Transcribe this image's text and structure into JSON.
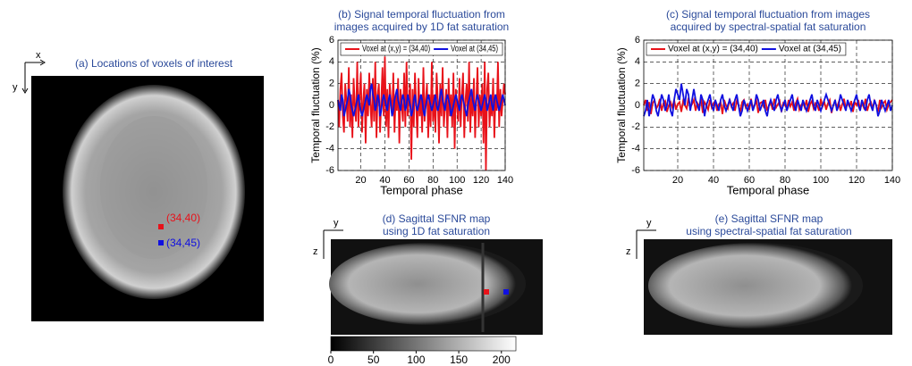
{
  "chart_data": [
    {
      "type": "line",
      "title": [
        "(b) Signal temporal fluctuation from",
        "images acquired by 1D fat saturation"
      ],
      "xlabel": "Temporal phase",
      "ylabel": "Temporal fluctuation (%)",
      "xlim": [
        1,
        140
      ],
      "xticks": [
        20,
        40,
        60,
        80,
        100,
        120,
        140
      ],
      "ylim": [
        -6,
        6
      ],
      "yticks": [
        -6,
        -4,
        -2,
        0,
        2,
        4,
        6
      ],
      "grid": true,
      "legend": "top",
      "x": [
        1,
        2,
        3,
        4,
        5,
        6,
        7,
        8,
        9,
        10,
        11,
        12,
        13,
        14,
        15,
        16,
        17,
        18,
        19,
        20,
        21,
        22,
        23,
        24,
        25,
        26,
        27,
        28,
        29,
        30,
        31,
        32,
        33,
        34,
        35,
        36,
        37,
        38,
        39,
        40,
        41,
        42,
        43,
        44,
        45,
        46,
        47,
        48,
        49,
        50,
        51,
        52,
        53,
        54,
        55,
        56,
        57,
        58,
        59,
        60,
        61,
        62,
        63,
        64,
        65,
        66,
        67,
        68,
        69,
        70,
        71,
        72,
        73,
        74,
        75,
        76,
        77,
        78,
        79,
        80,
        81,
        82,
        83,
        84,
        85,
        86,
        87,
        88,
        89,
        90,
        91,
        92,
        93,
        94,
        95,
        96,
        97,
        98,
        99,
        100,
        101,
        102,
        103,
        104,
        105,
        106,
        107,
        108,
        109,
        110,
        111,
        112,
        113,
        114,
        115,
        116,
        117,
        118,
        119,
        120,
        121,
        122,
        123,
        124,
        125,
        126,
        127,
        128,
        129,
        130,
        131,
        132,
        133,
        134,
        135,
        136,
        137,
        138,
        139,
        140
      ],
      "series": [
        {
          "name": "Voxel at (x,y) = (34,40)",
          "color": "#e8121a",
          "values": [
            0.5,
            -2,
            1.5,
            3,
            -1,
            -2.5,
            2,
            0.5,
            -1.5,
            3.5,
            -2,
            1,
            -3,
            2.5,
            0,
            -1.5,
            4,
            -2,
            1,
            3,
            -2.5,
            0.5,
            2,
            -3.5,
            1.5,
            -1,
            3,
            0,
            -2,
            2.5,
            -1.5,
            4,
            -3,
            1,
            2,
            -2.5,
            0.5,
            3.5,
            -1,
            4.5,
            -2,
            1.5,
            -3,
            2,
            0.5,
            -1,
            3,
            -2.5,
            1,
            -0.5,
            2.5,
            -3.5,
            1.5,
            0,
            -1.5,
            3,
            -2,
            4,
            -1,
            0.5,
            2,
            -5,
            1.5,
            -2,
            3,
            0,
            -3,
            2.5,
            -1,
            1,
            -2.5,
            3.5,
            -1.5,
            0.5,
            2,
            -3,
            1,
            -2,
            4,
            -1.5,
            1,
            -2.5,
            3,
            0.5,
            -3.5,
            2,
            -1,
            3.5,
            -2,
            0,
            1.5,
            -3,
            2.5,
            -1,
            1,
            -2,
            3,
            -4,
            1.5,
            0,
            -1.5,
            2.5,
            -2,
            1,
            3,
            -3,
            0.5,
            2,
            -1.5,
            4,
            -2.5,
            1,
            -1,
            2.5,
            -3,
            0.5,
            3.5,
            -2,
            1,
            -1,
            2,
            -3.5,
            4,
            -6,
            1.5,
            3,
            -2,
            0.5,
            -1,
            2.5,
            -3,
            1,
            -0.5,
            4,
            -2,
            1.5,
            -1,
            0.5,
            2,
            1
          ]
        },
        {
          "name": "Voxel at (34,45)",
          "color": "#1010e0",
          "values": [
            0.5,
            0,
            -0.5,
            1,
            0.5,
            -1,
            -0.5,
            0,
            0.5,
            1.5,
            1,
            0,
            -0.5,
            -1,
            -0.5,
            0,
            0.5,
            1,
            0,
            -0.5,
            -1,
            -0.5,
            0,
            0.5,
            1,
            0.5,
            0,
            1.5,
            2,
            1,
            0.5,
            -0.5,
            0,
            1,
            0.5,
            -1,
            -0.5,
            0.5,
            1,
            0.5,
            0,
            -0.5,
            0.5,
            1,
            0,
            -1,
            -0.5,
            0.5,
            1,
            1.5,
            0.5,
            0,
            -0.5,
            0.5,
            1,
            0.5,
            -0.5,
            0,
            1,
            0.5,
            0,
            -1,
            -0.5,
            0.5,
            1,
            0,
            -0.5,
            0,
            0.5,
            1,
            0.5,
            -0.5,
            -1,
            0,
            0.5,
            1,
            0.5,
            0,
            -0.5,
            0,
            0.5,
            1,
            0,
            -0.5,
            0,
            1,
            1.5,
            0.5,
            0,
            -0.5,
            0.5,
            1,
            0.5,
            0,
            -1,
            -0.5,
            0,
            0.5,
            1,
            0.5,
            0,
            -0.5,
            0.5,
            1,
            0.5,
            0,
            -0.5,
            -1,
            0,
            0.5,
            1,
            1.5,
            0.5,
            0,
            -0.5,
            0.5,
            1,
            0.5,
            0,
            -0.5,
            0,
            0.5,
            1,
            0.5,
            -0.5,
            0,
            0.5,
            1,
            0,
            -0.5,
            0.5,
            1,
            0.5,
            0,
            -0.5,
            0,
            0.5,
            1,
            0.5,
            0
          ]
        }
      ]
    },
    {
      "type": "line",
      "title": [
        "(c) Signal temporal fluctuation from images",
        "acquired by spectral-spatial fat saturation"
      ],
      "xlabel": "Temporal phase",
      "ylabel": "Temporal fluctuation (%)",
      "xlim": [
        1,
        140
      ],
      "xticks": [
        20,
        40,
        60,
        80,
        100,
        120,
        140
      ],
      "ylim": [
        -6,
        6
      ],
      "yticks": [
        -6,
        -4,
        -2,
        0,
        2,
        4,
        6
      ],
      "grid": true,
      "legend": "top",
      "x": [
        1,
        2,
        3,
        4,
        5,
        6,
        7,
        8,
        9,
        10,
        11,
        12,
        13,
        14,
        15,
        16,
        17,
        18,
        19,
        20,
        21,
        22,
        23,
        24,
        25,
        26,
        27,
        28,
        29,
        30,
        31,
        32,
        33,
        34,
        35,
        36,
        37,
        38,
        39,
        40,
        41,
        42,
        43,
        44,
        45,
        46,
        47,
        48,
        49,
        50,
        51,
        52,
        53,
        54,
        55,
        56,
        57,
        58,
        59,
        60,
        61,
        62,
        63,
        64,
        65,
        66,
        67,
        68,
        69,
        70,
        71,
        72,
        73,
        74,
        75,
        76,
        77,
        78,
        79,
        80,
        81,
        82,
        83,
        84,
        85,
        86,
        87,
        88,
        89,
        90,
        91,
        92,
        93,
        94,
        95,
        96,
        97,
        98,
        99,
        100,
        101,
        102,
        103,
        104,
        105,
        106,
        107,
        108,
        109,
        110,
        111,
        112,
        113,
        114,
        115,
        116,
        117,
        118,
        119,
        120,
        121,
        122,
        123,
        124,
        125,
        126,
        127,
        128,
        129,
        130,
        131,
        132,
        133,
        134,
        135,
        136,
        137,
        138,
        139,
        140
      ],
      "series": [
        {
          "name": "Voxel at (x,y) = (34,40)",
          "color": "#e8121a",
          "values": [
            0,
            0.5,
            -0.5,
            0.3,
            -0.8,
            0.2,
            0.5,
            -0.3,
            0,
            0.6,
            -0.5,
            0.2,
            0.4,
            -0.6,
            0,
            0.3,
            -0.2,
            0.5,
            -0.4,
            0.1,
            0.3,
            -0.6,
            0.4,
            0,
            -0.3,
            0.7,
            -0.2,
            0.1,
            0.5,
            -0.5,
            0.2,
            -0.1,
            0.6,
            -0.7,
            0.3,
            0,
            -0.4,
            0.5,
            -0.2,
            0.2,
            0.4,
            -0.5,
            0.1,
            0.3,
            -0.8,
            0.5,
            0,
            -0.3,
            0.6,
            -0.1,
            0.2,
            -0.5,
            0.4,
            0,
            -0.6,
            0.3,
            0.5,
            -0.2,
            0.1,
            -0.4,
            0.6,
            -0.3,
            0,
            0.4,
            -0.7,
            0.2,
            0.3,
            -0.1,
            0.5,
            -0.5,
            0,
            0.3,
            -0.4,
            0.6,
            -0.2,
            0.1,
            0.4,
            -0.6,
            0.2,
            0,
            -0.3,
            0.5,
            -0.1,
            0.3,
            -0.5,
            0.2,
            0.6,
            -0.4,
            0,
            0.3,
            -0.2,
            0.5,
            -0.6,
            0.1,
            0.4,
            -0.3,
            0.2,
            0,
            -0.5,
            0.6,
            -0.1,
            0.3,
            -0.4,
            0.2,
            0.5,
            -0.7,
            0,
            0.4,
            -0.2,
            0.3,
            -0.5,
            0.1,
            0.6,
            -0.3,
            0.2,
            -0.1,
            0.4,
            -0.6,
            0.3,
            0,
            0.5,
            -0.4,
            0.2,
            -0.2,
            0.6,
            -0.5,
            0.1,
            0.3,
            -0.3,
            0.4,
            0,
            -0.6,
            0.5,
            -0.2,
            0.2,
            0.4,
            -0.4,
            0.1,
            0.3,
            0.5
          ]
        },
        {
          "name": "Voxel at (34,45)",
          "color": "#1010e0",
          "values": [
            -1,
            -0.5,
            0.5,
            -1,
            0,
            1,
            0.5,
            -0.5,
            -1,
            0,
            1,
            0.5,
            -0.5,
            0,
            1,
            -0.5,
            -1,
            0.5,
            1.5,
            1,
            0.5,
            2,
            1,
            0,
            1.5,
            1,
            -0.5,
            0.5,
            1.5,
            0.5,
            0,
            -0.5,
            1,
            0.5,
            -1,
            0,
            0.5,
            1,
            0,
            -0.5,
            0.5,
            0,
            -0.5,
            0.5,
            1,
            0,
            -0.5,
            0,
            0.5,
            0,
            -0.5,
            0.5,
            1,
            0,
            -1,
            -0.5,
            0.5,
            0,
            -0.5,
            0,
            0.5,
            -0.5,
            0,
            1,
            0.5,
            -0.5,
            0,
            0.5,
            -0.5,
            -1,
            0,
            0.5,
            0,
            -0.5,
            0.5,
            1,
            0,
            -0.5,
            0,
            0.5,
            -0.5,
            0,
            0.5,
            1,
            0,
            -0.5,
            0.5,
            0,
            -0.5,
            0.5,
            0,
            -0.5,
            0,
            0.5,
            1,
            0,
            -0.5,
            0.5,
            0,
            -0.5,
            0,
            0.5,
            1,
            0.5,
            0,
            -0.5,
            0,
            0.5,
            -0.5,
            0,
            1,
            0.5,
            0,
            -0.5,
            0.5,
            0,
            -0.5,
            0,
            0.5,
            1,
            0,
            -0.5,
            0.5,
            0,
            -0.5,
            0.5,
            1,
            0,
            -0.5,
            0.5,
            0,
            -1,
            -0.5,
            0.5,
            0,
            -0.5,
            0,
            0.5,
            -0.5,
            0
          ]
        }
      ]
    }
  ],
  "images": [
    {
      "title": [
        "(a) Locations of voxels of interest"
      ],
      "x_axis": "x",
      "y_axis": "y",
      "markers": [
        {
          "label": "(34,40)",
          "color": "#e8121a"
        },
        {
          "label": "(34,45)",
          "color": "#1010e0"
        }
      ]
    },
    {
      "title": [
        "(d) Sagittal SFNR map",
        "using 1D fat saturation"
      ],
      "x_axis": "y",
      "y_axis": "z"
    },
    {
      "title": [
        "(e) Sagittal SFNR map",
        "using spectral-spatial fat saturation"
      ],
      "x_axis": "y",
      "y_axis": "z"
    }
  ],
  "colorbar": {
    "lim": [
      0,
      217
    ],
    "ticks": [
      0,
      50,
      100,
      150,
      200
    ]
  }
}
